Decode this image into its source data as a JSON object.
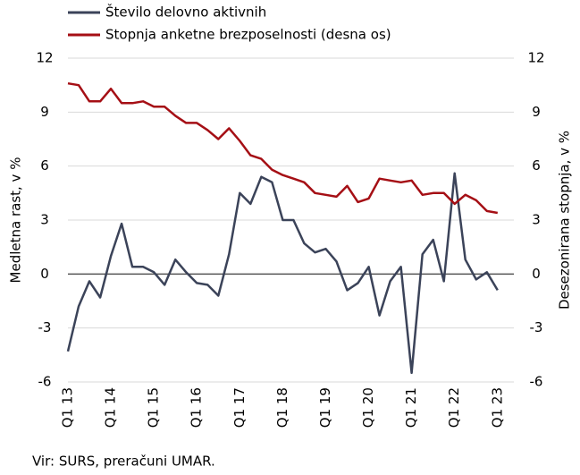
{
  "chart_data": {
    "type": "line",
    "categories": [
      "Q1 13",
      null,
      null,
      null,
      "Q1 14",
      null,
      null,
      null,
      "Q1 15",
      null,
      null,
      null,
      "Q1 16",
      null,
      null,
      null,
      "Q1 17",
      null,
      null,
      null,
      "Q1 18",
      null,
      null,
      null,
      "Q1 19",
      null,
      null,
      null,
      "Q1 20",
      null,
      null,
      null,
      "Q1 21",
      null,
      null,
      null,
      "Q1 22",
      null,
      null,
      null,
      "Q1 23"
    ],
    "series": [
      {
        "name": "Število delovno aktivnih",
        "color": "#3b4359",
        "axis": "y",
        "values": [
          -4.3,
          -1.8,
          -0.4,
          -1.3,
          1.0,
          2.8,
          0.4,
          0.4,
          0.1,
          -0.6,
          0.8,
          0.1,
          -0.5,
          -0.6,
          -1.2,
          1.1,
          4.5,
          3.9,
          5.4,
          5.1,
          3.0,
          3.0,
          1.7,
          1.2,
          1.4,
          0.7,
          -0.9,
          -0.5,
          0.4,
          -2.3,
          -0.4,
          0.4,
          -5.5,
          1.1,
          1.9,
          -0.4,
          5.6,
          0.8,
          -0.3,
          0.1,
          -0.9
        ]
      },
      {
        "name": "Stopnja anketne brezposelnosti (desna os)",
        "color": "#a50f15",
        "axis": "y2",
        "values": [
          10.6,
          10.5,
          9.6,
          9.6,
          10.3,
          9.5,
          9.5,
          9.6,
          9.3,
          9.3,
          8.8,
          8.4,
          8.4,
          8.0,
          7.5,
          8.1,
          7.4,
          6.6,
          6.4,
          5.8,
          5.5,
          5.3,
          5.1,
          4.5,
          4.4,
          4.3,
          4.9,
          4.0,
          4.2,
          5.3,
          5.2,
          5.1,
          5.2,
          4.4,
          4.5,
          4.5,
          3.9,
          4.4,
          4.1,
          3.5,
          3.4
        ]
      }
    ],
    "ylabel": "Medletna rast, v %",
    "y2label": "Desezonirana stopnja, v %",
    "ylim": [
      -6,
      12
    ],
    "yticks": [
      -6,
      -3,
      0,
      3,
      6,
      9,
      12
    ],
    "y2lim": [
      -6,
      12
    ],
    "y2ticks": [
      -6,
      -3,
      0,
      3,
      6,
      9,
      12
    ],
    "grid": true,
    "source": "Vir: SURS, preračuni UMAR."
  }
}
